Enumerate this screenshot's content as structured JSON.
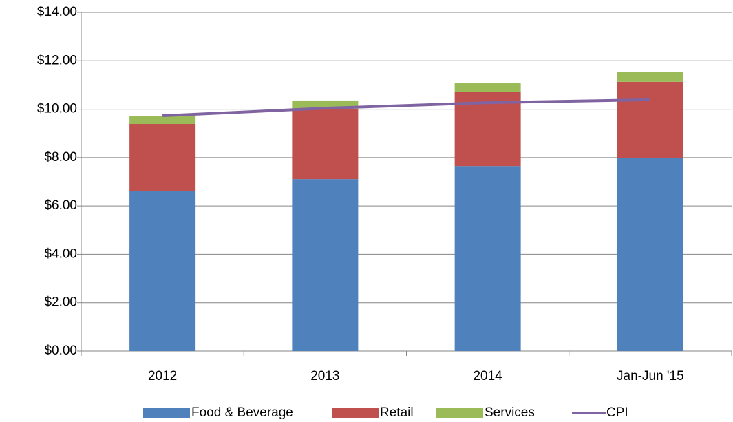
{
  "chart_data": {
    "type": "bar",
    "categories": [
      "2012",
      "2013",
      "2014",
      "Jan-Jun '15"
    ],
    "stacked": true,
    "series": [
      {
        "name": "Food & Beverage",
        "color": "#4f81bd",
        "values": [
          6.62,
          7.11,
          7.65,
          7.97
        ]
      },
      {
        "name": "Retail",
        "color": "#c0504d",
        "values": [
          2.77,
          2.91,
          3.05,
          3.16
        ]
      },
      {
        "name": "Services",
        "color": "#9bbb59",
        "values": [
          0.34,
          0.34,
          0.37,
          0.42
        ]
      },
      {
        "name": "CPI",
        "type": "line",
        "color": "#8064a2",
        "values": [
          9.73,
          10.04,
          10.27,
          10.39
        ]
      }
    ],
    "ylim": [
      0,
      14
    ],
    "yticks": [
      {
        "value": 0,
        "label": "$0.00"
      },
      {
        "value": 2,
        "label": "$2.00"
      },
      {
        "value": 4,
        "label": "$4.00"
      },
      {
        "value": 6,
        "label": "$6.00"
      },
      {
        "value": 8,
        "label": "$8.00"
      },
      {
        "value": 10,
        "label": "$10.00"
      },
      {
        "value": 12,
        "label": "$12.00"
      },
      {
        "value": 14,
        "label": "$14.00"
      }
    ],
    "grid": true,
    "legend": "bottom"
  }
}
